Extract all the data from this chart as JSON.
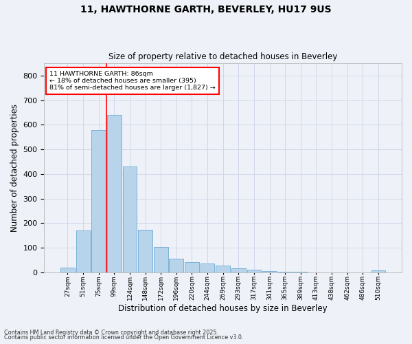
{
  "title": "11, HAWTHORNE GARTH, BEVERLEY, HU17 9US",
  "subtitle": "Size of property relative to detached houses in Beverley",
  "xlabel": "Distribution of detached houses by size in Beverley",
  "ylabel": "Number of detached properties",
  "footnote1": "Contains HM Land Registry data © Crown copyright and database right 2025.",
  "footnote2": "Contains public sector information licensed under the Open Government Licence v3.0.",
  "bar_labels": [
    "27sqm",
    "51sqm",
    "75sqm",
    "99sqm",
    "124sqm",
    "148sqm",
    "172sqm",
    "196sqm",
    "220sqm",
    "244sqm",
    "269sqm",
    "293sqm",
    "317sqm",
    "341sqm",
    "365sqm",
    "389sqm",
    "413sqm",
    "438sqm",
    "462sqm",
    "486sqm",
    "510sqm"
  ],
  "bar_values": [
    20,
    170,
    578,
    641,
    430,
    172,
    102,
    55,
    42,
    37,
    29,
    17,
    11,
    5,
    3,
    2,
    1,
    0,
    0,
    0,
    7
  ],
  "bar_color": "#b8d4ea",
  "bar_edge_color": "#6aaad4",
  "grid_color": "#d0d8e8",
  "bg_color": "#eef2f8",
  "property_line_label": "11 HAWTHORNE GARTH: 86sqm",
  "annotation_line2": "← 18% of detached houses are smaller (395)",
  "annotation_line3": "81% of semi-detached houses are larger (1,827) →",
  "box_color": "white",
  "box_edge_color": "red",
  "vline_color": "red",
  "vline_x": 2.5,
  "ylim": [
    0,
    850
  ],
  "yticks": [
    0,
    100,
    200,
    300,
    400,
    500,
    600,
    700,
    800
  ]
}
